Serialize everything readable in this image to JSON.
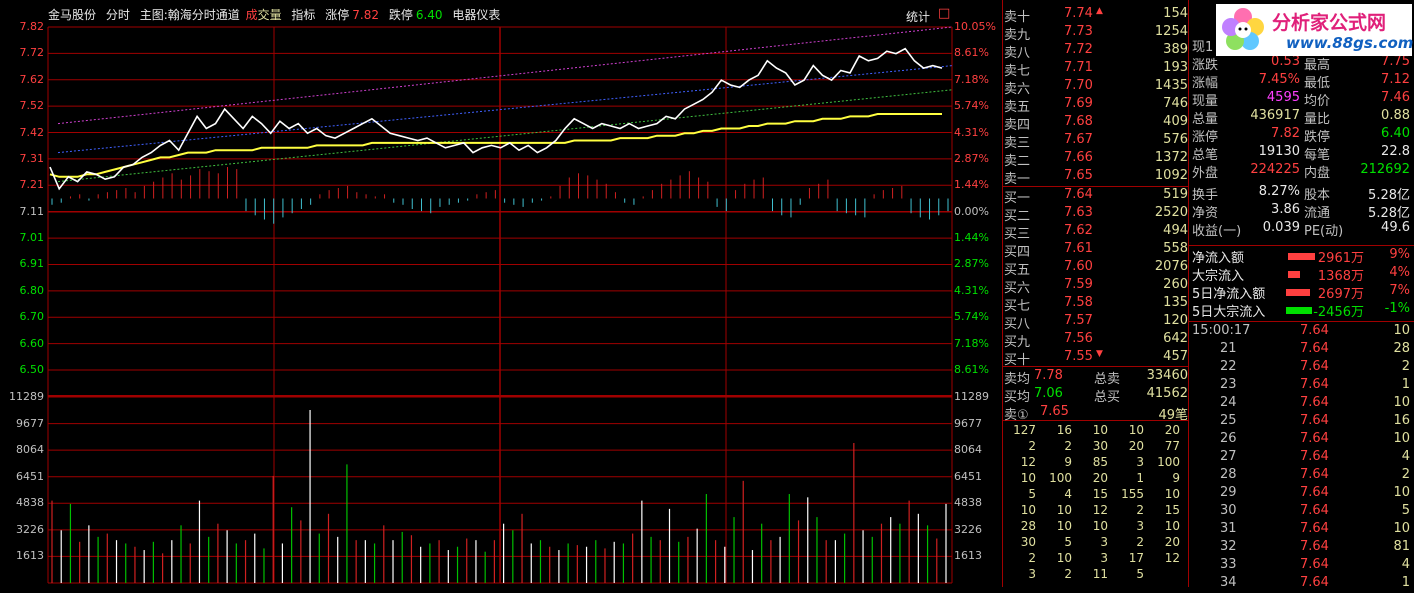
{
  "header": {
    "stock_name": "金马股份",
    "mode": "分时",
    "main_chart": "主图:翰海分时通道",
    "volume_label_red": "成",
    "volume_label_yellow": "交量",
    "indicator": "指标",
    "limit_up_label": "涨停",
    "limit_up_value": "7.82",
    "limit_down_label": "跌停",
    "limit_down_value": "6.40",
    "industry": "电器仪表",
    "stats_button": "统计",
    "close_box": "□"
  },
  "chart_data": {
    "type": "line",
    "price_ylim": [
      6.4,
      7.82
    ],
    "prev_close": 7.11,
    "left_axis_prices": [
      "7.82",
      "7.72",
      "7.62",
      "7.52",
      "7.42",
      "7.31",
      "7.21",
      "7.11",
      "7.01",
      "6.91",
      "6.80",
      "6.70",
      "6.60",
      "6.50"
    ],
    "right_axis_pcts": [
      "10.05%",
      "8.61%",
      "7.18%",
      "5.74%",
      "4.31%",
      "2.87%",
      "1.44%",
      "0.00%",
      "1.44%",
      "2.87%",
      "4.31%",
      "5.74%",
      "7.18%",
      "8.61%"
    ],
    "volume_axis": [
      "11289",
      "9677",
      "8064",
      "6451",
      "4838",
      "3226",
      "1613"
    ],
    "price_series": [
      7.24,
      7.15,
      7.2,
      7.18,
      7.22,
      7.21,
      7.19,
      7.2,
      7.24,
      7.25,
      7.28,
      7.3,
      7.33,
      7.35,
      7.31,
      7.38,
      7.45,
      7.4,
      7.42,
      7.48,
      7.44,
      7.4,
      7.45,
      7.42,
      7.38,
      7.43,
      7.4,
      7.42,
      7.38,
      7.4,
      7.37,
      7.36,
      7.38,
      7.4,
      7.42,
      7.44,
      7.41,
      7.38,
      7.37,
      7.36,
      7.35,
      7.36,
      7.34,
      7.32,
      7.33,
      7.34,
      7.3,
      7.32,
      7.33,
      7.32,
      7.34,
      7.31,
      7.33,
      7.3,
      7.32,
      7.35,
      7.4,
      7.44,
      7.42,
      7.4,
      7.42,
      7.41,
      7.4,
      7.42,
      7.4,
      7.41,
      7.42,
      7.45,
      7.44,
      7.48,
      7.5,
      7.52,
      7.55,
      7.6,
      7.58,
      7.57,
      7.6,
      7.62,
      7.68,
      7.65,
      7.63,
      7.58,
      7.6,
      7.66,
      7.62,
      7.6,
      7.64,
      7.63,
      7.7,
      7.68,
      7.69,
      7.72,
      7.71,
      7.73,
      7.68,
      7.65,
      7.66,
      7.65
    ],
    "avg_series": [
      7.21,
      7.2,
      7.2,
      7.2,
      7.21,
      7.21,
      7.22,
      7.23,
      7.24,
      7.25,
      7.26,
      7.27,
      7.28,
      7.28,
      7.29,
      7.3,
      7.3,
      7.3,
      7.31,
      7.31,
      7.31,
      7.31,
      7.31,
      7.32,
      7.32,
      7.32,
      7.32,
      7.32,
      7.32,
      7.33,
      7.33,
      7.33,
      7.33,
      7.33,
      7.33,
      7.34,
      7.34,
      7.34,
      7.34,
      7.34,
      7.34,
      7.34,
      7.34,
      7.34,
      7.34,
      7.34,
      7.34,
      7.34,
      7.34,
      7.34,
      7.34,
      7.34,
      7.34,
      7.34,
      7.34,
      7.34,
      7.34,
      7.35,
      7.35,
      7.35,
      7.35,
      7.35,
      7.36,
      7.36,
      7.36,
      7.36,
      7.37,
      7.37,
      7.37,
      7.38,
      7.38,
      7.39,
      7.39,
      7.4,
      7.4,
      7.4,
      7.41,
      7.41,
      7.42,
      7.42,
      7.42,
      7.43,
      7.43,
      7.43,
      7.44,
      7.44,
      7.44,
      7.45,
      7.45,
      7.45,
      7.46,
      7.46,
      7.46,
      7.46,
      7.46,
      7.46,
      7.46,
      7.46
    ],
    "upper_channel": [
      7.42,
      7.82
    ],
    "lower_channel": [
      7.18,
      7.56
    ],
    "mid_channel": [
      7.3,
      7.66
    ],
    "macd": [
      -3,
      -2,
      1,
      2,
      -1,
      2,
      3,
      4,
      5,
      3,
      6,
      8,
      10,
      12,
      9,
      11,
      14,
      13,
      12,
      15,
      14,
      -6,
      -8,
      -10,
      -12,
      -9,
      -7,
      -5,
      -3,
      2,
      4,
      5,
      6,
      3,
      2,
      1,
      2,
      -2,
      -3,
      -5,
      -6,
      -7,
      -4,
      -3,
      -2,
      -1,
      2,
      3,
      4,
      -2,
      -3,
      -4,
      -2,
      -1,
      1,
      6,
      10,
      12,
      11,
      9,
      7,
      3,
      -2,
      -3,
      1,
      4,
      7,
      9,
      11,
      13,
      10,
      8,
      -4,
      -6,
      4,
      7,
      9,
      10,
      -6,
      -8,
      -9,
      -3,
      5,
      7,
      9,
      -6,
      -7,
      -8,
      -9,
      2,
      4,
      5,
      6,
      -7,
      -9,
      -10,
      -8,
      -6
    ],
    "volumes": [
      5000,
      3200,
      4800,
      2500,
      3500,
      2800,
      3000,
      2600,
      2400,
      2200,
      2000,
      2500,
      1800,
      2600,
      3500,
      2400,
      5000,
      2800,
      3600,
      3200,
      2400,
      2600,
      3000,
      2100,
      6500,
      2400,
      4600,
      3800,
      10500,
      3000,
      4200,
      2800,
      7200,
      2600,
      2600,
      2400,
      3500,
      2600,
      3100,
      2900,
      2200,
      2400,
      2600,
      2000,
      2200,
      2700,
      2600,
      1900,
      2600,
      3600,
      3200,
      4200,
      2400,
      2600,
      2200,
      2000,
      2400,
      2300,
      2200,
      2600,
      2100,
      2500,
      2400,
      3000,
      5000,
      2800,
      2600,
      4500,
      2500,
      2800,
      3300,
      5400,
      2600,
      2200,
      4000,
      6200,
      2000,
      3600,
      2600,
      2800,
      5400,
      3800,
      5200,
      4000,
      2600,
      2600,
      3000,
      8500,
      3200,
      2800,
      3600,
      4000,
      3600,
      5000,
      4200,
      3500,
      2700,
      4800
    ],
    "volume_ylim": [
      0,
      11289
    ]
  },
  "order_book": {
    "sell": [
      {
        "label": "卖十",
        "price": "7.74",
        "vol": "154",
        "flag": "▲"
      },
      {
        "label": "卖九",
        "price": "7.73",
        "vol": "1254",
        "flag": ""
      },
      {
        "label": "卖八",
        "price": "7.72",
        "vol": "389",
        "flag": ""
      },
      {
        "label": "卖七",
        "price": "7.71",
        "vol": "193",
        "flag": ""
      },
      {
        "label": "卖六",
        "price": "7.70",
        "vol": "1435",
        "flag": ""
      },
      {
        "label": "卖五",
        "price": "7.69",
        "vol": "746",
        "flag": ""
      },
      {
        "label": "卖四",
        "price": "7.68",
        "vol": "409",
        "flag": ""
      },
      {
        "label": "卖三",
        "price": "7.67",
        "vol": "576",
        "flag": ""
      },
      {
        "label": "卖二",
        "price": "7.66",
        "vol": "1372",
        "flag": ""
      },
      {
        "label": "卖一",
        "price": "7.65",
        "vol": "1092",
        "flag": ""
      }
    ],
    "buy": [
      {
        "label": "买一",
        "price": "7.64",
        "vol": "519",
        "flag": ""
      },
      {
        "label": "买二",
        "price": "7.63",
        "vol": "2520",
        "flag": ""
      },
      {
        "label": "买三",
        "price": "7.62",
        "vol": "494",
        "flag": ""
      },
      {
        "label": "买四",
        "price": "7.61",
        "vol": "558",
        "flag": ""
      },
      {
        "label": "买五",
        "price": "7.60",
        "vol": "2076",
        "flag": ""
      },
      {
        "label": "买六",
        "price": "7.59",
        "vol": "260",
        "flag": ""
      },
      {
        "label": "买七",
        "price": "7.58",
        "vol": "135",
        "flag": ""
      },
      {
        "label": "买八",
        "price": "7.57",
        "vol": "120",
        "flag": ""
      },
      {
        "label": "买九",
        "price": "7.56",
        "vol": "642",
        "flag": ""
      },
      {
        "label": "买十",
        "price": "7.55",
        "vol": "457",
        "flag": "▼"
      }
    ],
    "sell_avg": {
      "label": "卖均",
      "price": "7.78",
      "total_label": "总卖",
      "total": "33460"
    },
    "buy_avg": {
      "label": "买均",
      "price": "7.06",
      "total_label": "总买",
      "total": "41562"
    },
    "sell1_queue": {
      "label": "卖①",
      "price": "7.65",
      "count": "49笔"
    },
    "queue_rows": [
      [
        "127",
        "16",
        "10",
        "10",
        "20"
      ],
      [
        "2",
        "2",
        "30",
        "20",
        "77"
      ],
      [
        "12",
        "9",
        "85",
        "3",
        "100"
      ],
      [
        "10",
        "100",
        "20",
        "1",
        "9"
      ],
      [
        "5",
        "4",
        "15",
        "155",
        "10"
      ],
      [
        "10",
        "10",
        "12",
        "2",
        "15"
      ],
      [
        "28",
        "10",
        "10",
        "3",
        "10"
      ],
      [
        "30",
        "5",
        "3",
        "2",
        "20"
      ],
      [
        "2",
        "10",
        "3",
        "17",
        "12"
      ],
      [
        "3",
        "2",
        "11",
        "5",
        ""
      ]
    ]
  },
  "quote": {
    "current_partial": "现1",
    "rows": [
      {
        "a": "涨跌",
        "b": "0.53",
        "bc": "red",
        "c": "最高",
        "d": "7.75",
        "dc": "red"
      },
      {
        "a": "涨幅",
        "b": "7.45%",
        "bc": "red",
        "c": "最低",
        "d": "7.12",
        "dc": "red"
      },
      {
        "a": "现量",
        "b": "4595",
        "bc": "magenta",
        "c": "均价",
        "d": "7.46",
        "dc": "red"
      },
      {
        "a": "总量",
        "b": "436917",
        "bc": "yellow",
        "c": "量比",
        "d": "0.88",
        "dc": "yellow"
      },
      {
        "a": "涨停",
        "b": "7.82",
        "bc": "red",
        "c": "跌停",
        "d": "6.40",
        "dc": "green"
      },
      {
        "a": "总笔",
        "b": "19130",
        "bc": "white",
        "c": "每笔",
        "d": "22.8",
        "dc": "white"
      },
      {
        "a": "外盘",
        "b": "224225",
        "bc": "red",
        "c": "内盘",
        "d": "212692",
        "dc": "green"
      },
      {
        "a": "换手",
        "b": "8.27%",
        "bc": "white",
        "c": "股本",
        "d": "5.28亿",
        "dc": "white"
      },
      {
        "a": "净资",
        "b": "3.86",
        "bc": "white",
        "c": "流通",
        "d": "5.28亿",
        "dc": "white"
      },
      {
        "a": "收益(一)",
        "b": "0.039",
        "bc": "white",
        "c": "PE(动)",
        "d": "49.6",
        "dc": "white"
      }
    ],
    "flows": [
      {
        "label": "净流入额",
        "value": "2961万",
        "pct": "9%",
        "color": "#ff4040",
        "bar": 0.9,
        "vc": "red"
      },
      {
        "label": "大宗流入",
        "value": "1368万",
        "pct": "4%",
        "color": "#ff4040",
        "bar": 0.4,
        "vc": "red"
      },
      {
        "label": "5日净流入额",
        "value": "2697万",
        "pct": "7%",
        "color": "#ff4040",
        "bar": 0.8,
        "vc": "red"
      },
      {
        "label": "5日大宗流入",
        "value": "-2456万",
        "pct": "-1%",
        "color": "#00e000",
        "bar": 0.85,
        "vc": "green"
      }
    ]
  },
  "ticks": {
    "first_time": "15:00:17",
    "rows": [
      {
        "t": "15:00:17",
        "p": "7.64",
        "v": "10"
      },
      {
        "t": "21",
        "p": "7.64",
        "v": "28"
      },
      {
        "t": "22",
        "p": "7.64",
        "v": "2"
      },
      {
        "t": "23",
        "p": "7.64",
        "v": "1"
      },
      {
        "t": "24",
        "p": "7.64",
        "v": "10"
      },
      {
        "t": "25",
        "p": "7.64",
        "v": "16"
      },
      {
        "t": "26",
        "p": "7.64",
        "v": "10"
      },
      {
        "t": "27",
        "p": "7.64",
        "v": "4"
      },
      {
        "t": "28",
        "p": "7.64",
        "v": "2"
      },
      {
        "t": "29",
        "p": "7.64",
        "v": "10"
      },
      {
        "t": "30",
        "p": "7.64",
        "v": "5"
      },
      {
        "t": "31",
        "p": "7.64",
        "v": "10"
      },
      {
        "t": "32",
        "p": "7.64",
        "v": "81"
      },
      {
        "t": "33",
        "p": "7.64",
        "v": "4"
      },
      {
        "t": "34",
        "p": "7.64",
        "v": "1"
      }
    ]
  },
  "logo": {
    "text": "分析家公式网",
    "url_text": "www.88gs.com"
  },
  "colors": {
    "grid": "#a00000",
    "price_line": "#ffffff",
    "avg_line": "#ffff40",
    "red": "#ff4040",
    "green": "#00e000",
    "cyan": "#40c0d0"
  }
}
